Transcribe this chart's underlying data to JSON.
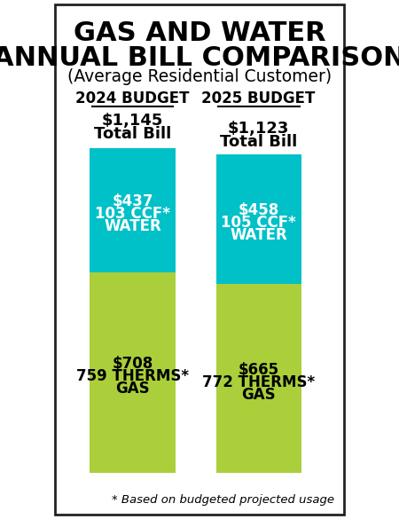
{
  "title_line1": "GAS AND WATER",
  "title_line2": "ANNUAL BILL COMPARISON",
  "subtitle": "(Average Residential Customer)",
  "col1_header": "2024 BUDGET",
  "col2_header": "2025 BUDGET",
  "col1_water_val": 437,
  "col1_gas_val": 708,
  "col2_water_val": 458,
  "col2_gas_val": 665,
  "water_color": "#00C0C8",
  "gas_color": "#AACF3A",
  "bg_color": "#FFFFFF",
  "border_color": "#222222",
  "text_color_dark": "#000000",
  "text_color_white": "#FFFFFF",
  "footnote": "* Based on budgeted projected usage"
}
